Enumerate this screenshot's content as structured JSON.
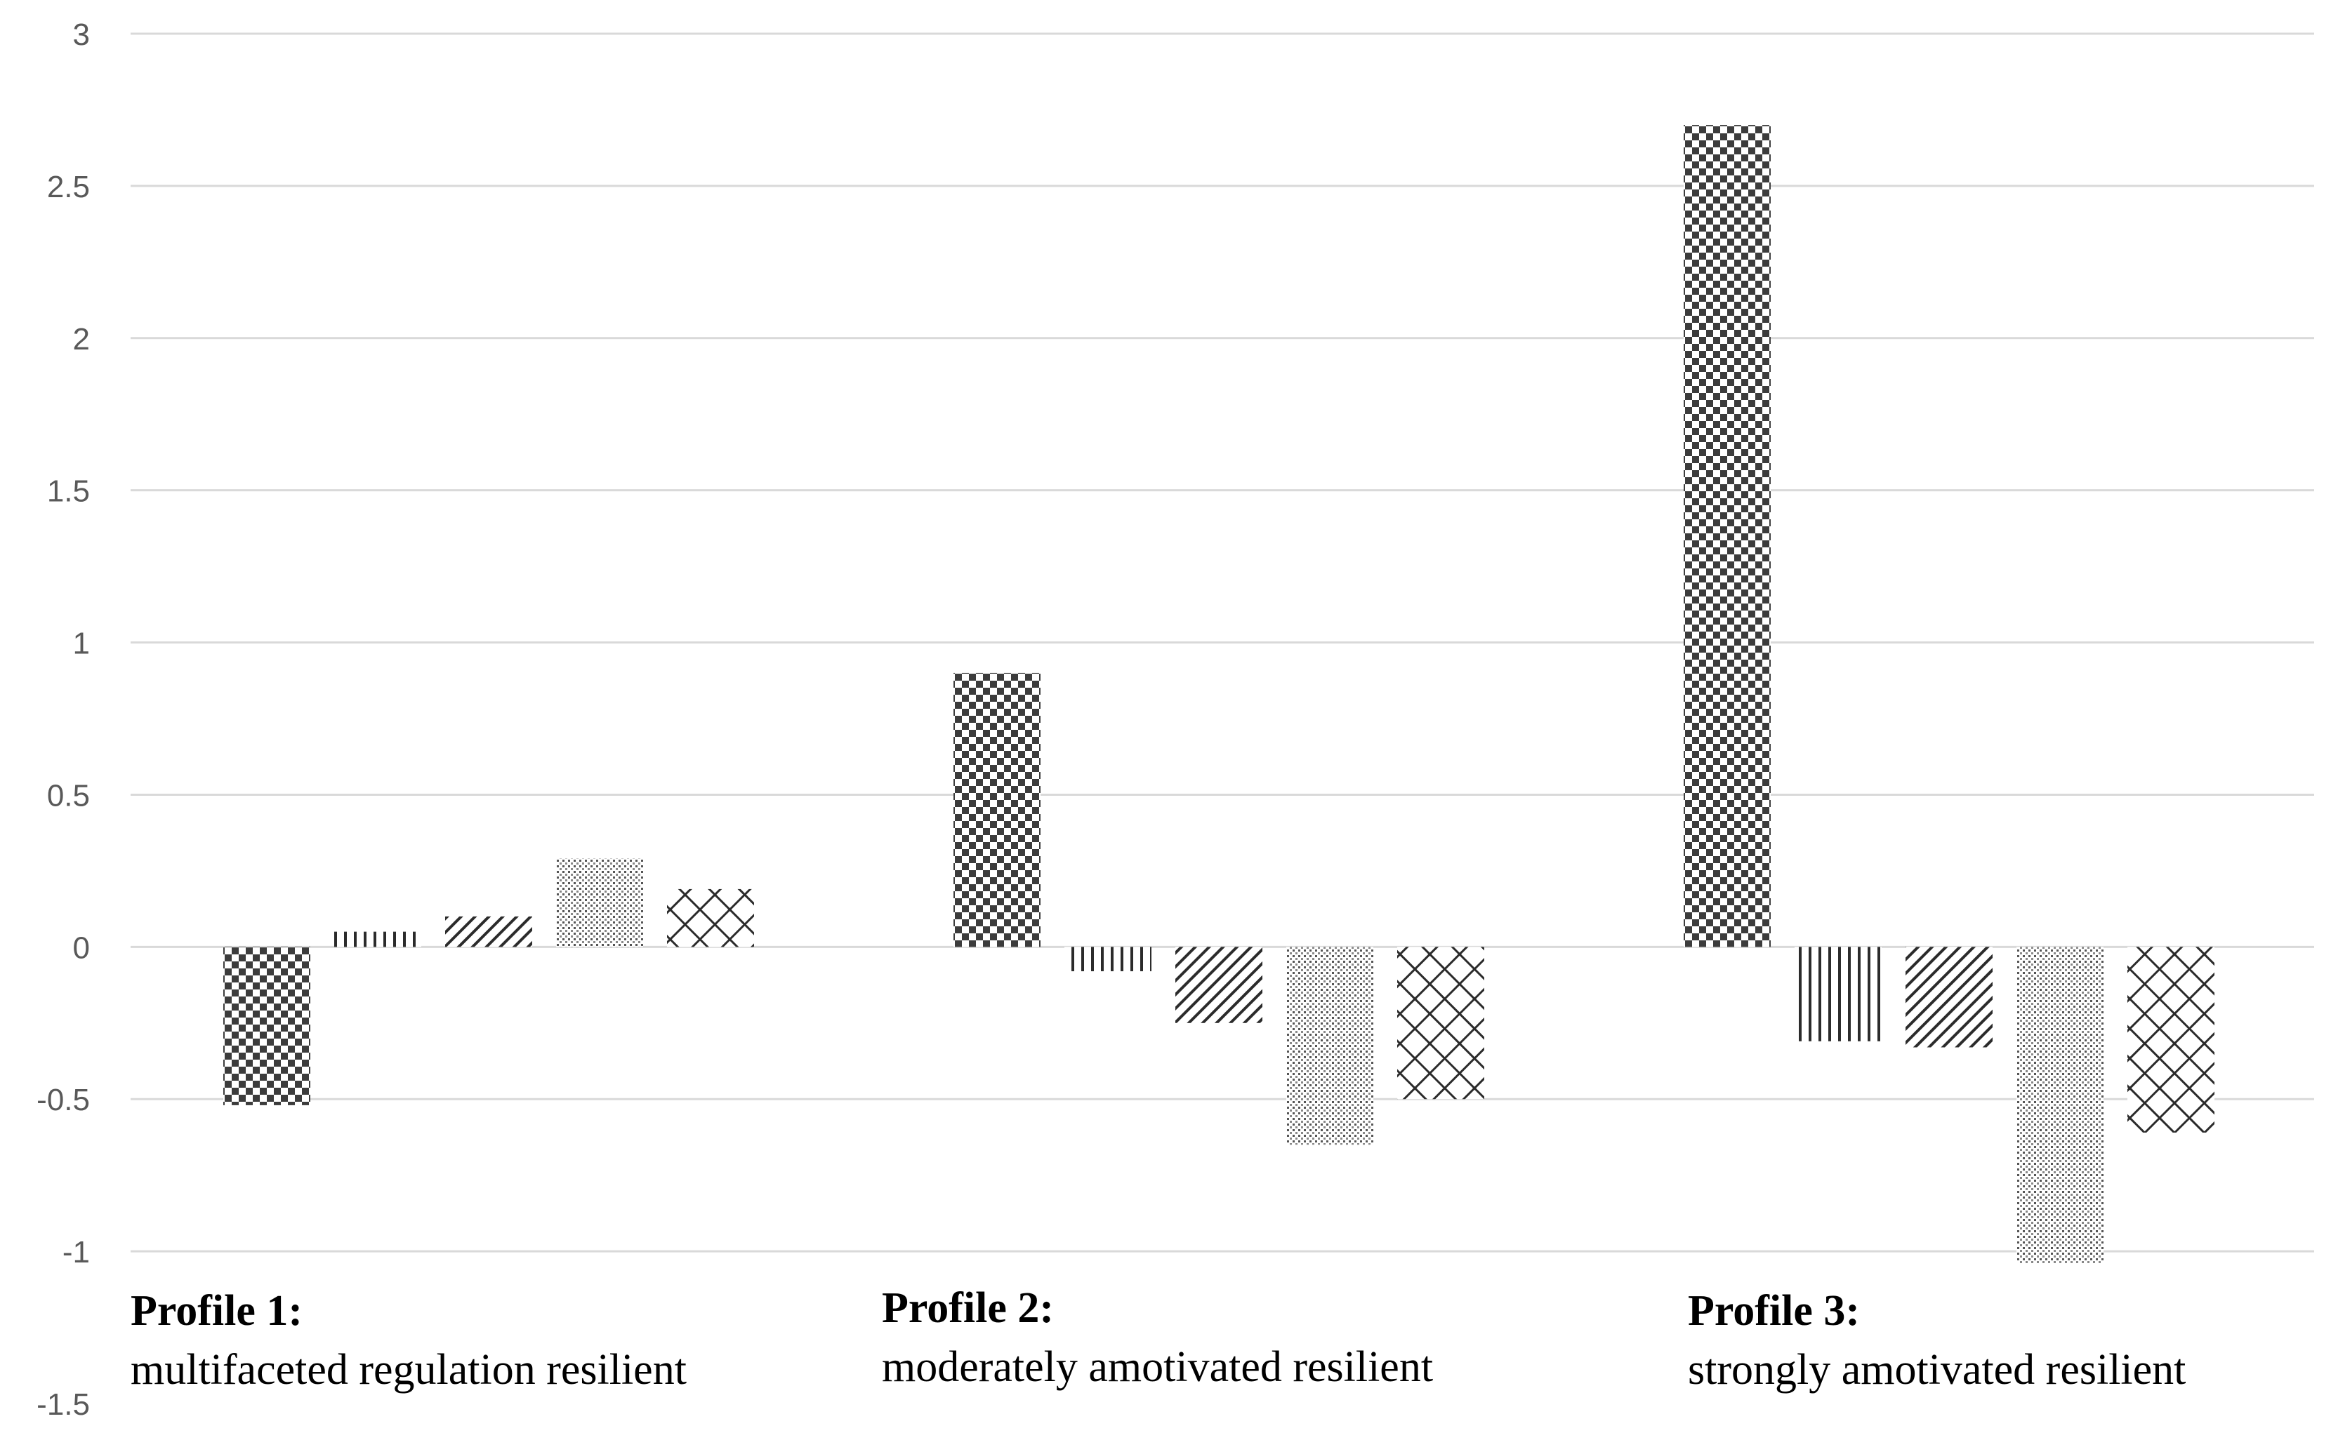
{
  "chart_data": {
    "type": "bar",
    "title": "",
    "xlabel": "",
    "ylabel": "",
    "ylim": [
      -1.5,
      3
    ],
    "yticks": [
      "3",
      "2.5",
      "2",
      "1.5",
      "1",
      "0.5",
      "0",
      "-0.5",
      "-1",
      "-1.5"
    ],
    "grid": true,
    "legend": "none",
    "categories": [
      {
        "title": "Profile 1:",
        "description": "multifaceted regulation resilient"
      },
      {
        "title": "Profile 2:",
        "description": "moderately amotivated resilient"
      },
      {
        "title": "Profile 3:",
        "description": "strongly amotivated resilient"
      }
    ],
    "series": [
      {
        "pattern": "checkerboard",
        "values": [
          -0.52,
          0.9,
          2.7
        ]
      },
      {
        "pattern": "vertical-lines",
        "values": [
          0.05,
          -0.08,
          -0.31
        ]
      },
      {
        "pattern": "diagonal-lines",
        "values": [
          0.1,
          -0.25,
          -0.33
        ]
      },
      {
        "pattern": "dots",
        "values": [
          0.29,
          -0.65,
          -1.04
        ]
      },
      {
        "pattern": "crosshatch",
        "values": [
          0.19,
          -0.5,
          -0.61
        ]
      }
    ]
  },
  "colors": {
    "pattern_ink": "#3c3c3c",
    "grid": "#d9d9d9",
    "tick_text": "#595959"
  }
}
